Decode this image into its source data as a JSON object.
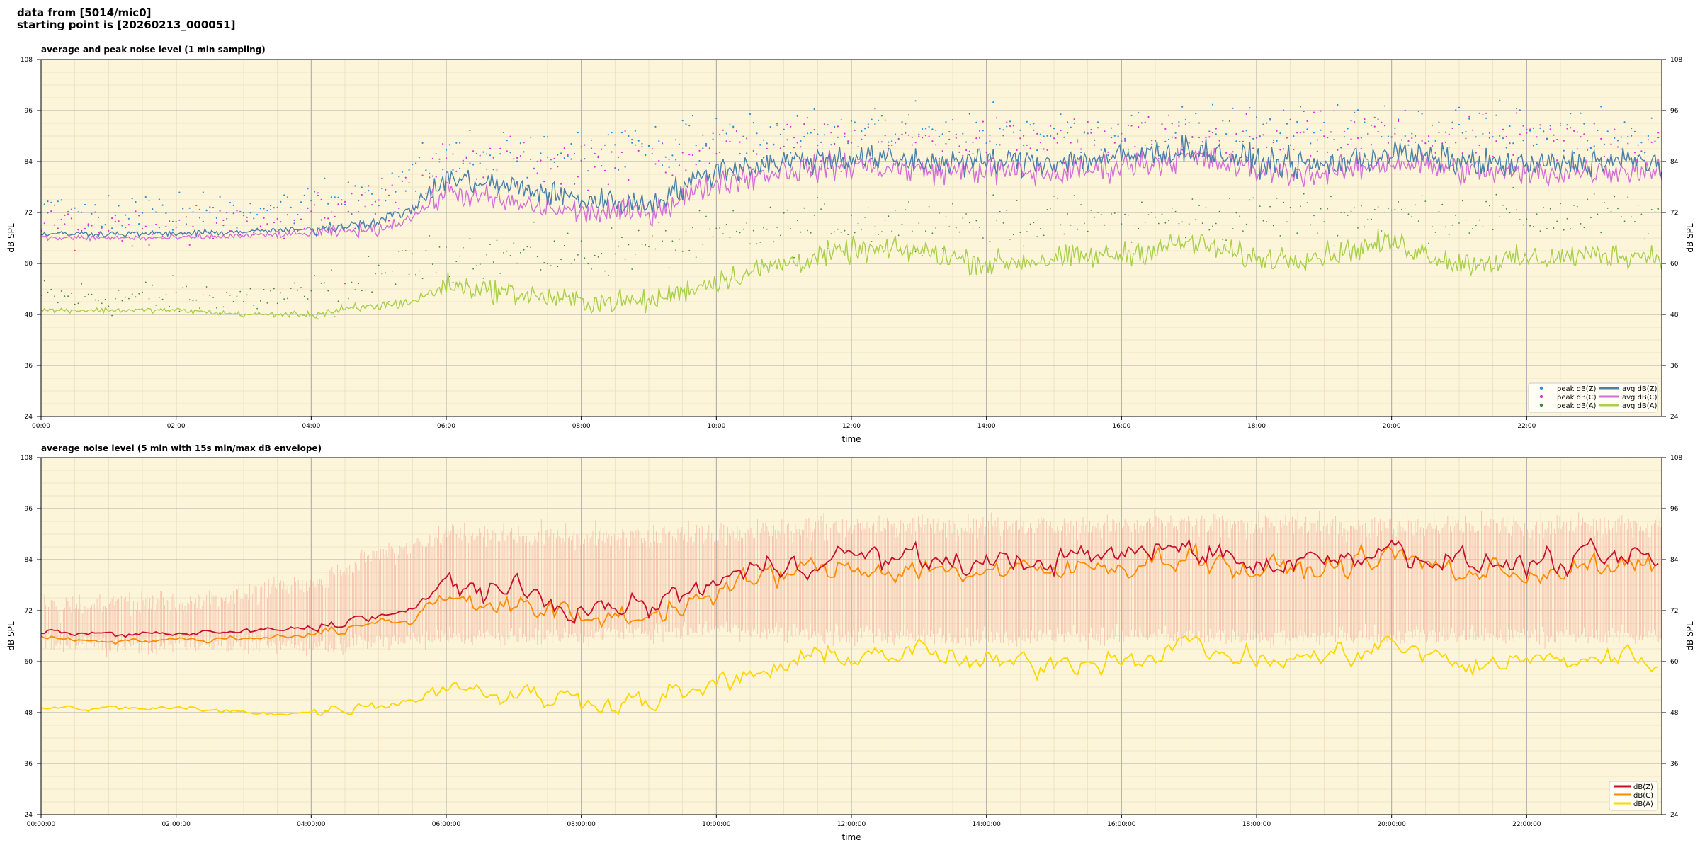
{
  "header": {
    "line1": "data from [5014/mic0]",
    "line2": "starting point is [20260213_000051]"
  },
  "colors": {
    "background": "#fdf5d9",
    "peak_z": "#2b8fd6",
    "peak_c": "#e030d6",
    "peak_a": "#3c8a3c",
    "avg_z": "#4a7fa8",
    "avg_c": "#d46fd8",
    "avg_a": "#a8d04a",
    "z5": "#c8102e",
    "c5": "#ff8c00",
    "a5": "#ffd700",
    "envelope": "#f4b8a4"
  },
  "chart_data": [
    {
      "type": "line",
      "title": "average and peak noise level (1 min sampling)",
      "xlabel": "time",
      "ylabel": "dB SPL",
      "ylim": [
        24,
        108
      ],
      "xlim_hours": [
        0,
        24
      ],
      "yticks": [
        "24",
        "36",
        "48",
        "60",
        "72",
        "84",
        "96",
        "108"
      ],
      "xticks": [
        "00:00",
        "02:00",
        "04:00",
        "06:00",
        "08:00",
        "10:00",
        "12:00",
        "14:00",
        "16:00",
        "18:00",
        "20:00",
        "22:00"
      ],
      "grid": true,
      "legend_position": "lower-right",
      "legend": [
        {
          "label": "peak dB(Z)",
          "kind": "dot",
          "color_key": "peak_z"
        },
        {
          "label": "peak dB(C)",
          "kind": "dot",
          "color_key": "peak_c"
        },
        {
          "label": "peak dB(A)",
          "kind": "dot",
          "color_key": "peak_a"
        },
        {
          "label": "avg dB(Z)",
          "kind": "line",
          "color_key": "avg_z"
        },
        {
          "label": "avg dB(C)",
          "kind": "line",
          "color_key": "avg_c"
        },
        {
          "label": "avg dB(A)",
          "kind": "line",
          "color_key": "avg_a"
        }
      ],
      "series": [
        {
          "name": "avg dB(Z)",
          "x": [
            0,
            1,
            2,
            3,
            4,
            5,
            5.5,
            6,
            7,
            8,
            9,
            10,
            11,
            12,
            13,
            14,
            15,
            16,
            17,
            18,
            19,
            20,
            21,
            22,
            23,
            24
          ],
          "y": [
            67,
            67,
            67,
            67.5,
            68,
            70,
            73,
            80,
            78,
            75,
            74,
            82,
            84,
            85,
            84,
            84,
            84,
            85,
            87,
            84,
            83,
            86,
            84,
            83,
            84,
            84
          ]
        },
        {
          "name": "avg dB(C)",
          "x": [
            0,
            1,
            2,
            3,
            4,
            5,
            5.5,
            6,
            7,
            8,
            9,
            10,
            11,
            12,
            13,
            14,
            15,
            16,
            17,
            18,
            19,
            20,
            21,
            22,
            23,
            24
          ],
          "y": [
            66,
            66,
            66,
            66.5,
            67,
            68,
            71,
            77,
            74,
            72,
            72,
            79,
            82,
            83,
            82,
            82,
            81,
            83,
            85,
            82,
            81,
            84,
            82,
            81,
            82,
            82
          ]
        },
        {
          "name": "avg dB(A)",
          "x": [
            0,
            1,
            2,
            3,
            4,
            5,
            5.5,
            6,
            7,
            8,
            9,
            10,
            11,
            12,
            13,
            14,
            15,
            16,
            17,
            18,
            19,
            20,
            21,
            22,
            23,
            24
          ],
          "y": [
            49,
            49,
            49,
            48,
            48,
            50,
            51,
            55,
            53,
            51,
            51,
            56,
            60,
            63,
            63,
            60,
            61,
            62,
            65,
            61,
            62,
            65,
            60,
            61,
            62,
            62
          ]
        },
        {
          "name": "peak dB(Z)",
          "x": [
            0,
            2,
            4,
            5,
            6,
            8,
            10,
            12,
            14,
            16,
            18,
            20,
            22,
            24
          ],
          "y": [
            72,
            72,
            74,
            78,
            85,
            86,
            89,
            91,
            91,
            91,
            91,
            92,
            91,
            91
          ]
        },
        {
          "name": "peak dB(C)",
          "x": [
            0,
            2,
            4,
            5,
            6,
            8,
            10,
            12,
            14,
            16,
            18,
            20,
            22,
            24
          ],
          "y": [
            69,
            69,
            71,
            75,
            83,
            84,
            87,
            89,
            89,
            89,
            89,
            90,
            89,
            89
          ]
        },
        {
          "name": "peak dB(A)",
          "x": [
            0,
            2,
            4,
            5,
            6,
            8,
            10,
            12,
            14,
            16,
            18,
            20,
            22,
            24
          ],
          "y": [
            52,
            52,
            52,
            56,
            62,
            62,
            66,
            70,
            70,
            70,
            71,
            72,
            71,
            71
          ]
        }
      ]
    },
    {
      "type": "line",
      "title": "average noise level (5 min with 15s min/max dB envelope)",
      "xlabel": "time",
      "ylabel": "dB SPL",
      "ylim": [
        24,
        108
      ],
      "xlim_hours": [
        0,
        24
      ],
      "yticks": [
        "24",
        "36",
        "48",
        "60",
        "72",
        "84",
        "96",
        "108"
      ],
      "xticks": [
        "00:00:00",
        "02:00:00",
        "04:00:00",
        "06:00:00",
        "08:00:00",
        "10:00:00",
        "12:00:00",
        "14:00:00",
        "16:00:00",
        "18:00:00",
        "20:00:00",
        "22:00:00"
      ],
      "grid": true,
      "legend_position": "lower-right",
      "legend": [
        {
          "label": "dB(Z)",
          "kind": "line",
          "color_key": "z5"
        },
        {
          "label": "dB(C)",
          "kind": "line",
          "color_key": "c5"
        },
        {
          "label": "dB(A)",
          "kind": "line",
          "color_key": "a5"
        }
      ],
      "series": [
        {
          "name": "dB(Z)",
          "x": [
            0,
            1,
            2,
            3,
            4,
            5,
            5.5,
            6,
            7,
            8,
            9,
            10,
            11,
            12,
            13,
            14,
            15,
            16,
            17,
            18,
            19,
            20,
            21,
            22,
            23,
            24
          ],
          "y": [
            67,
            66.5,
            66.5,
            67,
            68,
            71,
            71.5,
            79,
            76,
            72,
            73,
            79,
            83,
            85,
            84,
            83,
            84,
            85,
            87,
            83,
            84,
            87,
            83,
            83,
            84,
            84
          ]
        },
        {
          "name": "dB(C)",
          "x": [
            0,
            1,
            2,
            3,
            4,
            5,
            5.5,
            6,
            7,
            8,
            9,
            10,
            11,
            12,
            13,
            14,
            15,
            16,
            17,
            18,
            19,
            20,
            21,
            22,
            23,
            24
          ],
          "y": [
            65.5,
            65,
            65,
            65.5,
            66.5,
            69,
            70,
            76,
            73,
            70,
            71,
            76,
            81,
            82,
            82,
            81,
            81,
            83,
            85,
            81,
            82,
            85,
            81,
            81,
            82,
            82
          ]
        },
        {
          "name": "dB(A)",
          "x": [
            0,
            1,
            2,
            3,
            4,
            5,
            5.5,
            6,
            7,
            8,
            9,
            10,
            11,
            12,
            13,
            14,
            15,
            16,
            17,
            18,
            19,
            20,
            21,
            22,
            23,
            24
          ],
          "y": [
            49,
            49,
            49,
            48,
            48,
            50,
            51,
            55,
            52,
            51,
            51,
            54,
            59,
            62,
            62,
            59,
            60,
            61,
            64,
            60,
            61,
            64,
            59,
            60,
            61,
            61
          ]
        },
        {
          "name": "envelope max",
          "x": [
            0,
            2,
            4,
            5,
            6,
            8,
            10,
            12,
            14,
            16,
            18,
            20,
            22,
            24
          ],
          "y": [
            73,
            74,
            78,
            85,
            90,
            89,
            90,
            92,
            92,
            92,
            92,
            92,
            92,
            92
          ]
        },
        {
          "name": "envelope min",
          "x": [
            0,
            2,
            4,
            5,
            6,
            8,
            10,
            12,
            14,
            16,
            18,
            20,
            22,
            24
          ],
          "y": [
            64,
            64,
            64,
            65,
            66,
            66,
            68,
            66,
            66,
            66,
            66,
            66,
            66,
            66
          ]
        }
      ]
    }
  ]
}
